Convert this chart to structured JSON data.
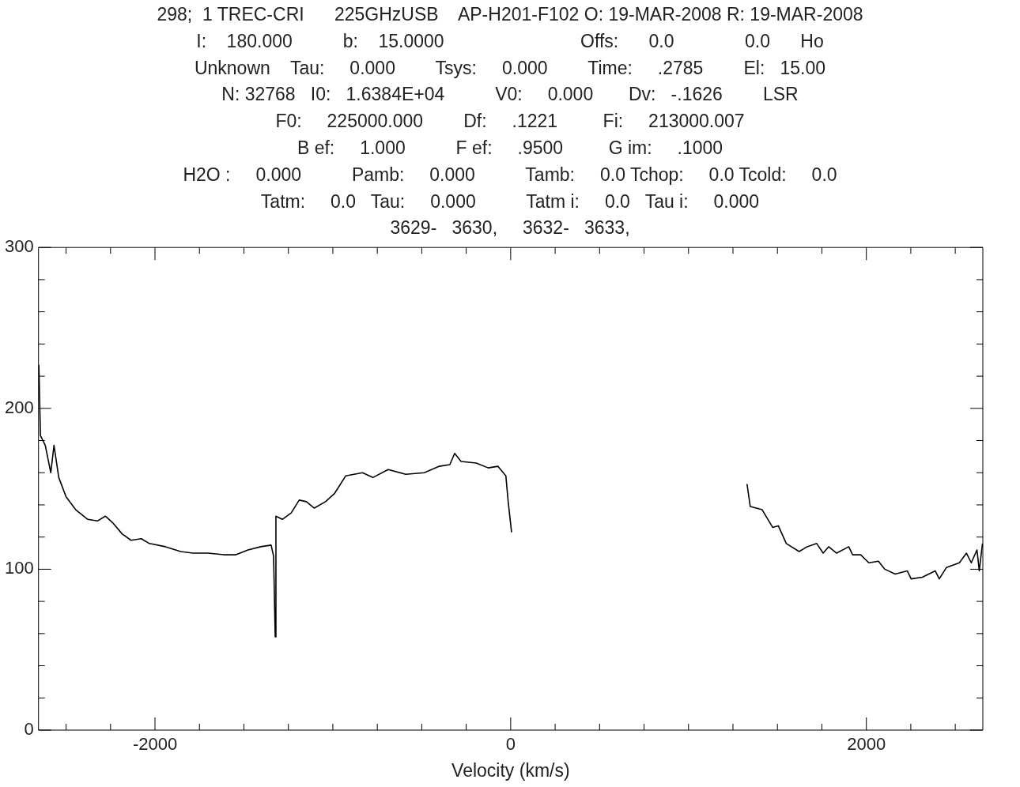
{
  "chart_data": {
    "type": "line",
    "annotations": [
      "298;  1 TREC-CRI      225GHzUSB    AP-H201-F102 O: 19-MAR-2008 R: 19-MAR-2008",
      "I:    180.000          b:    15.0000                           Offs:      0.0              0.0      Ho",
      "Unknown    Tau:     0.000        Tsys:     0.000        Time:     .2785        El:   15.00",
      "N: 32768   I0:   1.6384E+04          V0:     0.000       Dv:   -.1626        LSR",
      "F0:     225000.000        Df:     .1221         Fi:     213000.007",
      "B ef:     1.000          F ef:     .9500         G im:     .1000",
      "H2O :     0.000          Pamb:     0.000          Tamb:     0.0 Tchop:     0.0 Tcold:     0.0",
      "Tatm:     0.0   Tau:     0.000          Tatm i:     0.0   Tau i:     0.000",
      "3629-   3630,     3632-   3633,"
    ],
    "xlabel": "Velocity (km/s)",
    "xlim": [
      -2655,
      2655
    ],
    "xticks": [
      {
        "value": -2500,
        "label": null
      },
      {
        "value": -2250,
        "label": null
      },
      -2000,
      {
        "value": -1750,
        "label": null
      },
      {
        "value": -1500,
        "label": null
      },
      {
        "value": -1250,
        "label": null
      },
      {
        "value": -1000,
        "label": null
      },
      {
        "value": -750,
        "label": null
      },
      {
        "value": -500,
        "label": null
      },
      {
        "value": -250,
        "label": null
      },
      0,
      {
        "value": 250,
        "label": null
      },
      {
        "value": 500,
        "label": null
      },
      {
        "value": 750,
        "label": null
      },
      {
        "value": 1000,
        "label": null
      },
      {
        "value": 1250,
        "label": null
      },
      {
        "value": 1500,
        "label": null
      },
      {
        "value": 1750,
        "label": null
      },
      2000,
      {
        "value": 2250,
        "label": null
      },
      {
        "value": 2500,
        "label": null
      }
    ],
    "ylim": [
      0,
      300
    ],
    "yticks": [
      0,
      {
        "value": 20,
        "label": null
      },
      {
        "value": 40,
        "label": null
      },
      {
        "value": 60,
        "label": null
      },
      {
        "value": 80,
        "label": null
      },
      100,
      {
        "value": 120,
        "label": null
      },
      {
        "value": 140,
        "label": null
      },
      {
        "value": 160,
        "label": null
      },
      {
        "value": 180,
        "label": null
      },
      200,
      {
        "value": 220,
        "label": null
      },
      {
        "value": 240,
        "label": null
      },
      {
        "value": 260,
        "label": null
      },
      {
        "value": 280,
        "label": null
      },
      300
    ],
    "grid": false,
    "legend": false,
    "marker": "none",
    "line_style": "solid",
    "series": [
      {
        "color": "#000000",
        "x": [
          -2653,
          -2644,
          -2617,
          -2586,
          -2568,
          -2541,
          -2500,
          -2446,
          -2378,
          -2324,
          -2279,
          -2239,
          -2185,
          -2135,
          -2077,
          -2032,
          -1941,
          -1856,
          -1788,
          -1703,
          -1613,
          -1545,
          -1477,
          -1405,
          -1347,
          -1333,
          -1324,
          -1320,
          -1284,
          -1234,
          -1189,
          -1149,
          -1104,
          -1041,
          -991,
          -928,
          -833,
          -775,
          -689,
          -590,
          -486,
          -401,
          -342,
          -315,
          -279,
          -194,
          -126,
          -72,
          -27,
          -14,
          5,
          700,
          1329,
          1347,
          1414,
          1473,
          1505,
          1550,
          1622,
          1667,
          1721,
          1757,
          1788,
          1833,
          1901,
          1923,
          1968,
          2014,
          2068,
          2104,
          2162,
          2230,
          2252,
          2315,
          2387,
          2410,
          2450,
          2523,
          2563,
          2590,
          2622,
          2635,
          2653
        ],
        "values": [
          227,
          183,
          177,
          160,
          177,
          157,
          145,
          137,
          131,
          130,
          133,
          129,
          122,
          118,
          119,
          116,
          114,
          111,
          110,
          110,
          109,
          109,
          112,
          114,
          115,
          108,
          58,
          133,
          131,
          135,
          143,
          142,
          138,
          142,
          147,
          158,
          160,
          157,
          162,
          159,
          160,
          164,
          165,
          172,
          167,
          166,
          163,
          164,
          158,
          142,
          123,
          null,
          153,
          139,
          137,
          126,
          127,
          116,
          111,
          114,
          116,
          110,
          114,
          110,
          114,
          109,
          109,
          104,
          105,
          100,
          97,
          99,
          94,
          95,
          99,
          94,
          101,
          104,
          110,
          104,
          112,
          99,
          116
        ]
      }
    ]
  }
}
